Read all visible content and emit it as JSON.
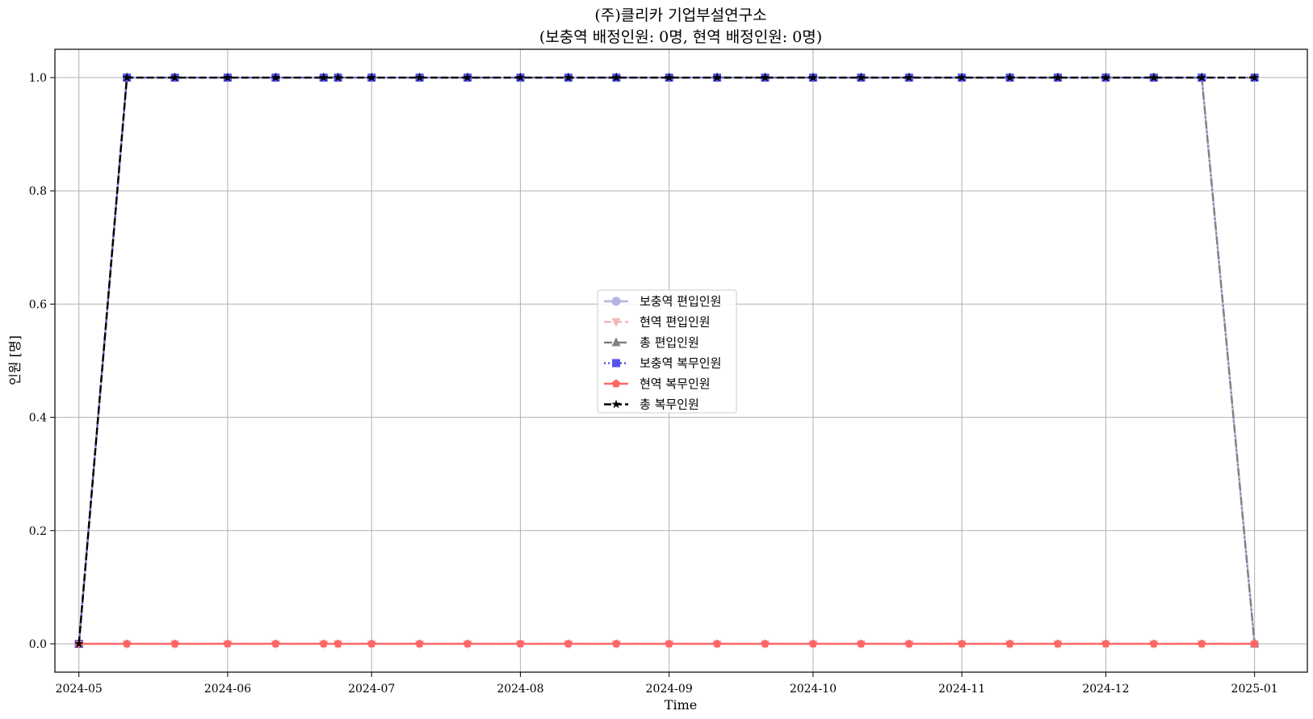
{
  "chart_data": {
    "type": "line",
    "title": "(주)클리카 기업부설연구소",
    "subtitle": "(보충역 배정인원: 0명, 현역 배정인원: 0명)",
    "xlabel": "Time",
    "ylabel": "인원 [명]",
    "x_range": [
      "2024-04-26",
      "2025-01-12"
    ],
    "ylim": [
      -0.05,
      1.05
    ],
    "x_ticks": [
      "2024-05",
      "2024-06",
      "2024-07",
      "2024-08",
      "2024-09",
      "2024-10",
      "2024-11",
      "2024-12",
      "2025-01"
    ],
    "y_ticks": [
      "0.0",
      "0.2",
      "0.4",
      "0.6",
      "0.8",
      "1.0"
    ],
    "grid": true,
    "legend_position": "center",
    "x": [
      "2024-05-01",
      "2024-05-11",
      "2024-05-21",
      "2024-06-01",
      "2024-06-11",
      "2024-06-21",
      "2024-06-24",
      "2024-07-01",
      "2024-07-11",
      "2024-07-21",
      "2024-08-01",
      "2024-08-11",
      "2024-08-21",
      "2024-09-01",
      "2024-09-11",
      "2024-09-21",
      "2024-10-01",
      "2024-10-11",
      "2024-10-21",
      "2024-11-01",
      "2024-11-11",
      "2024-11-21",
      "2024-12-01",
      "2024-12-11",
      "2024-12-21",
      "2025-01-01"
    ],
    "series": [
      {
        "name": "보충역 편입인원",
        "color": "#b3b3e6",
        "marker": "circle",
        "dash": "solid",
        "values": [
          0,
          1,
          1,
          1,
          1,
          1,
          1,
          1,
          1,
          1,
          1,
          1,
          1,
          1,
          1,
          1,
          1,
          1,
          1,
          1,
          1,
          1,
          1,
          1,
          1,
          0
        ]
      },
      {
        "name": "현역 편입인원",
        "color": "#f2b8b8",
        "marker": "triangle-down",
        "dash": "dashed",
        "values": [
          0,
          0,
          0,
          0,
          0,
          0,
          0,
          0,
          0,
          0,
          0,
          0,
          0,
          0,
          0,
          0,
          0,
          0,
          0,
          0,
          0,
          0,
          0,
          0,
          0,
          0
        ]
      },
      {
        "name": "총 편입인원",
        "color": "#808080",
        "marker": "triangle-up",
        "dash": "dashdot",
        "values": [
          0,
          1,
          1,
          1,
          1,
          1,
          1,
          1,
          1,
          1,
          1,
          1,
          1,
          1,
          1,
          1,
          1,
          1,
          1,
          1,
          1,
          1,
          1,
          1,
          1,
          0
        ]
      },
      {
        "name": "보충역 복무인원",
        "color": "#5555ee",
        "marker": "square",
        "dash": "dotted",
        "values": [
          0,
          1,
          1,
          1,
          1,
          1,
          1,
          1,
          1,
          1,
          1,
          1,
          1,
          1,
          1,
          1,
          1,
          1,
          1,
          1,
          1,
          1,
          1,
          1,
          1,
          1
        ]
      },
      {
        "name": "현역 복무인원",
        "color": "#ff6666",
        "marker": "pentagon",
        "dash": "solid",
        "values": [
          0,
          0,
          0,
          0,
          0,
          0,
          0,
          0,
          0,
          0,
          0,
          0,
          0,
          0,
          0,
          0,
          0,
          0,
          0,
          0,
          0,
          0,
          0,
          0,
          0,
          0
        ]
      },
      {
        "name": "총 복무인원",
        "color": "#000000",
        "marker": "star",
        "dash": "dashed",
        "values": [
          0,
          1,
          1,
          1,
          1,
          1,
          1,
          1,
          1,
          1,
          1,
          1,
          1,
          1,
          1,
          1,
          1,
          1,
          1,
          1,
          1,
          1,
          1,
          1,
          1,
          1
        ]
      }
    ]
  }
}
